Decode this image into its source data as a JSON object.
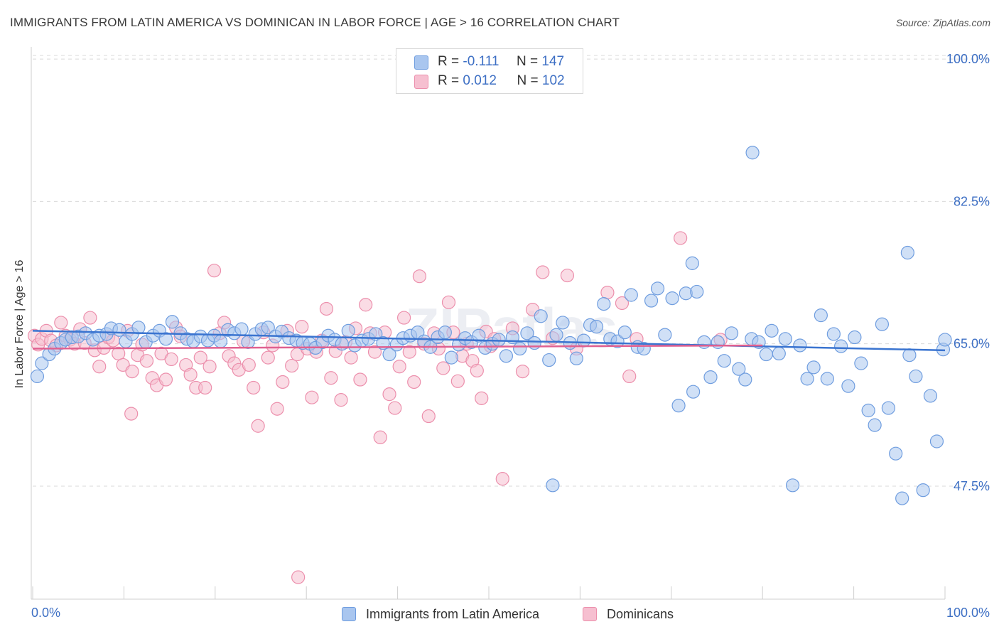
{
  "title": "IMMIGRANTS FROM LATIN AMERICA VS DOMINICAN IN LABOR FORCE | AGE > 16 CORRELATION CHART",
  "source": "Source: ZipAtlas.com",
  "watermark": "ZIPatlas",
  "colors": {
    "blue_fill": "#a9c6ef",
    "blue_stroke": "#6f9ddf",
    "blue_line": "#3a74d0",
    "pink_fill": "#f6bfd0",
    "pink_stroke": "#ec8fac",
    "pink_line": "#e06090",
    "label_blue": "#3d6fc4",
    "grid": "#d9d9d9"
  },
  "legend": {
    "r_label": "R =",
    "n_label": "N =",
    "rows": [
      {
        "series": "blue",
        "r": "-0.111",
        "n": "147"
      },
      {
        "series": "pink",
        "r": "0.012",
        "n": "102"
      }
    ]
  },
  "bottom_legend": [
    {
      "series": "blue",
      "label": "Immigrants from Latin America"
    },
    {
      "series": "pink",
      "label": "Dominicans"
    }
  ],
  "chart_data": {
    "type": "scatter",
    "title": "IMMIGRANTS FROM LATIN AMERICA VS DOMINICAN IN LABOR FORCE | AGE > 16 CORRELATION CHART",
    "xlabel": "",
    "ylabel": "In Labor Force | Age > 16",
    "xlim": [
      0,
      100
    ],
    "ylim": [
      33.6,
      101.5
    ],
    "x_tick_labels": [
      "0.0%",
      "100.0%"
    ],
    "y_ticks": [
      47.5,
      65.0,
      82.5,
      100.0
    ],
    "y_tick_labels": [
      "47.5%",
      "65.0%",
      "82.5%",
      "100.0%"
    ],
    "grid": true,
    "legend_placement": "top-center",
    "series": [
      {
        "name": "Immigrants from Latin America",
        "color": "#6f9ddf",
        "trend": {
          "x": [
            0,
            100
          ],
          "y": [
            66.6,
            64.2
          ]
        },
        "points": [
          [
            0.5,
            61.0
          ],
          [
            1.0,
            62.6
          ],
          [
            1.8,
            63.7
          ],
          [
            2.4,
            64.4
          ],
          [
            3.1,
            65.1
          ],
          [
            3.6,
            65.5
          ],
          [
            4.3,
            65.8
          ],
          [
            5.0,
            65.9
          ],
          [
            5.8,
            66.3
          ],
          [
            6.6,
            65.5
          ],
          [
            7.3,
            66.0
          ],
          [
            8.1,
            66.2
          ],
          [
            8.6,
            66.9
          ],
          [
            9.5,
            66.7
          ],
          [
            10.2,
            65.3
          ],
          [
            10.9,
            66.2
          ],
          [
            11.6,
            67.0
          ],
          [
            12.4,
            65.2
          ],
          [
            13.2,
            66.0
          ],
          [
            13.9,
            66.6
          ],
          [
            14.6,
            65.6
          ],
          [
            15.3,
            67.7
          ],
          [
            16.2,
            66.3
          ],
          [
            16.9,
            65.6
          ],
          [
            17.6,
            65.3
          ],
          [
            18.4,
            65.9
          ],
          [
            19.2,
            65.4
          ],
          [
            19.9,
            66.0
          ],
          [
            20.6,
            65.3
          ],
          [
            21.4,
            66.7
          ],
          [
            22.1,
            66.3
          ],
          [
            22.9,
            66.8
          ],
          [
            23.6,
            65.2
          ],
          [
            24.4,
            66.2
          ],
          [
            25.1,
            66.8
          ],
          [
            25.8,
            67.0
          ],
          [
            26.6,
            65.9
          ],
          [
            27.3,
            66.5
          ],
          [
            28.1,
            65.7
          ],
          [
            28.9,
            65.4
          ],
          [
            29.6,
            65.1
          ],
          [
            30.4,
            65.0
          ],
          [
            31.0,
            64.5
          ],
          [
            31.8,
            65.2
          ],
          [
            32.4,
            66.0
          ],
          [
            33.1,
            65.5
          ],
          [
            33.9,
            65.0
          ],
          [
            34.6,
            66.6
          ],
          [
            35.3,
            64.8
          ],
          [
            36.1,
            65.4
          ],
          [
            36.8,
            65.6
          ],
          [
            37.6,
            66.2
          ],
          [
            38.4,
            65.1
          ],
          [
            39.1,
            63.7
          ],
          [
            39.9,
            64.9
          ],
          [
            40.6,
            65.7
          ],
          [
            41.4,
            66.0
          ],
          [
            42.2,
            66.4
          ],
          [
            42.9,
            65.3
          ],
          [
            43.6,
            64.6
          ],
          [
            44.4,
            65.8
          ],
          [
            45.2,
            66.4
          ],
          [
            45.9,
            63.3
          ],
          [
            46.7,
            64.9
          ],
          [
            47.4,
            65.7
          ],
          [
            48.1,
            65.2
          ],
          [
            48.9,
            66.0
          ],
          [
            49.6,
            64.5
          ],
          [
            50.4,
            65.0
          ],
          [
            51.1,
            65.5
          ],
          [
            51.9,
            63.5
          ],
          [
            52.6,
            65.8
          ],
          [
            53.4,
            64.4
          ],
          [
            54.2,
            66.3
          ],
          [
            55.0,
            65.1
          ],
          [
            55.7,
            68.4
          ],
          [
            56.6,
            63.0
          ],
          [
            57.4,
            66.1
          ],
          [
            58.1,
            67.6
          ],
          [
            58.9,
            65.1
          ],
          [
            59.6,
            63.2
          ],
          [
            60.4,
            65.4
          ],
          [
            61.1,
            67.3
          ],
          [
            61.8,
            67.1
          ],
          [
            62.6,
            69.9
          ],
          [
            63.3,
            65.6
          ],
          [
            64.1,
            65.3
          ],
          [
            64.9,
            66.4
          ],
          [
            65.6,
            71.0
          ],
          [
            66.3,
            64.6
          ],
          [
            67.0,
            64.4
          ],
          [
            67.8,
            70.3
          ],
          [
            68.5,
            71.8
          ],
          [
            69.3,
            66.1
          ],
          [
            70.1,
            70.6
          ],
          [
            70.8,
            57.4
          ],
          [
            71.6,
            71.2
          ],
          [
            72.3,
            74.9
          ],
          [
            72.8,
            71.4
          ],
          [
            73.6,
            65.2
          ],
          [
            74.3,
            60.9
          ],
          [
            75.1,
            65.2
          ],
          [
            75.8,
            62.9
          ],
          [
            76.6,
            66.3
          ],
          [
            77.4,
            61.9
          ],
          [
            78.1,
            60.6
          ],
          [
            78.8,
            65.6
          ],
          [
            79.6,
            65.2
          ],
          [
            80.4,
            63.7
          ],
          [
            81.0,
            66.6
          ],
          [
            81.8,
            63.8
          ],
          [
            82.5,
            65.6
          ],
          [
            83.3,
            47.6
          ],
          [
            84.1,
            64.8
          ],
          [
            84.9,
            60.7
          ],
          [
            85.6,
            62.1
          ],
          [
            86.4,
            68.5
          ],
          [
            87.1,
            60.7
          ],
          [
            87.8,
            66.2
          ],
          [
            88.6,
            64.7
          ],
          [
            89.4,
            59.8
          ],
          [
            90.1,
            65.8
          ],
          [
            90.8,
            62.6
          ],
          [
            91.6,
            56.8
          ],
          [
            92.3,
            55.0
          ],
          [
            93.1,
            67.4
          ],
          [
            93.8,
            57.1
          ],
          [
            94.6,
            51.5
          ],
          [
            95.3,
            46.0
          ],
          [
            96.1,
            63.6
          ],
          [
            96.8,
            61.0
          ],
          [
            97.6,
            47.0
          ],
          [
            98.4,
            58.6
          ],
          [
            99.1,
            53.0
          ],
          [
            99.8,
            64.3
          ],
          [
            100.0,
            65.5
          ],
          [
            78.9,
            88.5
          ],
          [
            95.9,
            76.2
          ],
          [
            57.0,
            47.6
          ],
          [
            72.4,
            59.1
          ]
        ]
      },
      {
        "name": "Dominicans",
        "color": "#ec8fac",
        "trend": {
          "x": [
            0,
            80
          ],
          "y": [
            64.4,
            64.8
          ]
        },
        "points": [
          [
            0.2,
            66.0
          ],
          [
            0.6,
            64.9
          ],
          [
            1.0,
            65.6
          ],
          [
            1.5,
            66.6
          ],
          [
            2.0,
            65.4
          ],
          [
            2.6,
            64.8
          ],
          [
            3.1,
            67.6
          ],
          [
            3.6,
            66.0
          ],
          [
            4.1,
            65.5
          ],
          [
            4.6,
            65.0
          ],
          [
            5.2,
            66.8
          ],
          [
            5.7,
            65.1
          ],
          [
            6.3,
            68.2
          ],
          [
            6.8,
            64.2
          ],
          [
            7.3,
            62.2
          ],
          [
            7.8,
            64.5
          ],
          [
            8.3,
            65.8
          ],
          [
            8.8,
            65.4
          ],
          [
            9.4,
            63.8
          ],
          [
            9.9,
            62.4
          ],
          [
            10.4,
            66.6
          ],
          [
            10.9,
            61.6
          ],
          [
            11.5,
            63.6
          ],
          [
            12.0,
            64.9
          ],
          [
            12.5,
            62.9
          ],
          [
            13.1,
            60.8
          ],
          [
            13.6,
            59.9
          ],
          [
            14.1,
            63.8
          ],
          [
            14.6,
            60.6
          ],
          [
            15.2,
            63.1
          ],
          [
            15.7,
            67.0
          ],
          [
            16.2,
            65.9
          ],
          [
            16.8,
            62.4
          ],
          [
            17.3,
            61.2
          ],
          [
            17.9,
            59.6
          ],
          [
            18.4,
            63.3
          ],
          [
            18.9,
            59.6
          ],
          [
            19.4,
            62.2
          ],
          [
            19.9,
            74.0
          ],
          [
            20.5,
            66.3
          ],
          [
            21.0,
            67.6
          ],
          [
            21.5,
            63.5
          ],
          [
            22.1,
            62.6
          ],
          [
            22.6,
            61.8
          ],
          [
            23.1,
            65.3
          ],
          [
            23.7,
            62.4
          ],
          [
            24.2,
            59.6
          ],
          [
            24.7,
            54.9
          ],
          [
            25.3,
            66.4
          ],
          [
            25.8,
            63.3
          ],
          [
            26.3,
            64.8
          ],
          [
            26.8,
            57.0
          ],
          [
            27.4,
            60.3
          ],
          [
            27.9,
            66.6
          ],
          [
            28.4,
            62.3
          ],
          [
            29.0,
            63.7
          ],
          [
            29.5,
            67.1
          ],
          [
            30.1,
            64.4
          ],
          [
            30.6,
            58.4
          ],
          [
            31.1,
            64.0
          ],
          [
            31.7,
            65.4
          ],
          [
            32.2,
            69.3
          ],
          [
            32.7,
            60.8
          ],
          [
            33.2,
            64.1
          ],
          [
            33.8,
            58.1
          ],
          [
            34.3,
            65.2
          ],
          [
            34.9,
            63.3
          ],
          [
            35.4,
            66.9
          ],
          [
            35.9,
            60.6
          ],
          [
            36.5,
            69.8
          ],
          [
            37.0,
            66.3
          ],
          [
            37.5,
            64.0
          ],
          [
            38.1,
            53.5
          ],
          [
            38.6,
            66.4
          ],
          [
            39.1,
            58.8
          ],
          [
            39.7,
            57.1
          ],
          [
            40.2,
            62.2
          ],
          [
            40.7,
            68.2
          ],
          [
            41.3,
            64.0
          ],
          [
            41.8,
            60.3
          ],
          [
            42.4,
            73.3
          ],
          [
            42.9,
            65.0
          ],
          [
            43.4,
            56.1
          ],
          [
            44.0,
            66.3
          ],
          [
            44.5,
            64.4
          ],
          [
            45.0,
            62.0
          ],
          [
            45.6,
            70.1
          ],
          [
            46.1,
            66.4
          ],
          [
            46.6,
            60.4
          ],
          [
            47.1,
            63.5
          ],
          [
            47.6,
            65.0
          ],
          [
            48.2,
            62.9
          ],
          [
            48.7,
            61.7
          ],
          [
            49.2,
            58.3
          ],
          [
            49.7,
            66.5
          ],
          [
            50.2,
            64.7
          ],
          [
            50.6,
            65.6
          ],
          [
            51.5,
            48.4
          ],
          [
            52.6,
            66.9
          ],
          [
            53.7,
            61.6
          ],
          [
            54.8,
            69.2
          ],
          [
            55.9,
            73.8
          ],
          [
            57.0,
            65.7
          ],
          [
            58.6,
            73.4
          ],
          [
            59.6,
            64.4
          ],
          [
            63.0,
            71.3
          ],
          [
            64.6,
            70.0
          ],
          [
            65.4,
            61.0
          ],
          [
            66.2,
            65.6
          ],
          [
            71.0,
            78.0
          ],
          [
            75.4,
            65.5
          ],
          [
            29.1,
            36.3
          ],
          [
            10.8,
            56.4
          ]
        ]
      }
    ]
  }
}
